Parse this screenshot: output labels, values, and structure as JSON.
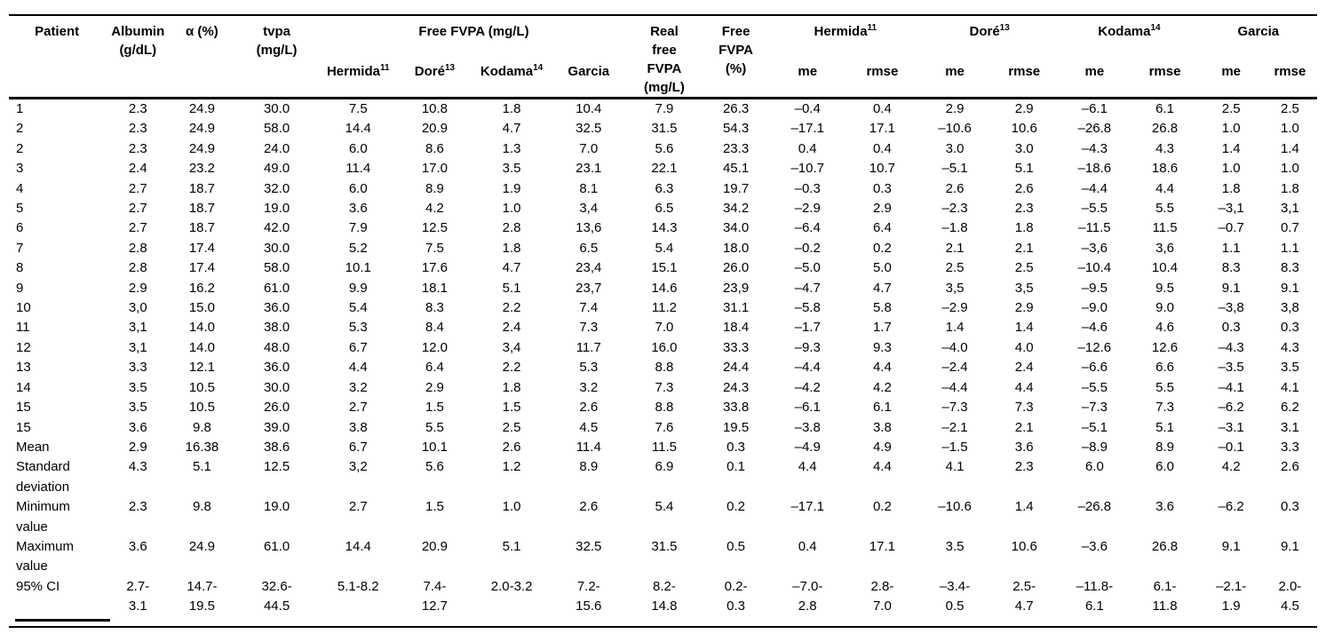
{
  "table": {
    "header": {
      "patient": "Patient",
      "albumin": "Albumin\n(g/dL)",
      "alpha": "α (%)",
      "tvpa": "tvpa\n(mg/L)",
      "free_fvpa_group": "Free FVPA (mg/L)",
      "real_free": "Real\nfree\nFVPA\n(mg/L)",
      "free_pct": "Free\nFVPA\n(%)",
      "hermida": {
        "label": "Hermida",
        "sup": "11"
      },
      "dore": {
        "label": "Doré",
        "sup": "13"
      },
      "kodama": {
        "label": "Kodama",
        "sup": "14"
      },
      "garcia": {
        "label": "Garcia",
        "sup": ""
      },
      "me": "me",
      "rmse": "rmse"
    },
    "rows": [
      {
        "cells": [
          "1",
          "2.3",
          "24.9",
          "30.0",
          "7.5",
          "10.8",
          "1.8",
          "10.4",
          "7.9",
          "26.3",
          "–0.4",
          "0.4",
          "2.9",
          "2.9",
          "–6.1",
          "6.1",
          "2.5",
          "2.5"
        ]
      },
      {
        "cells": [
          "2",
          "2.3",
          "24.9",
          "58.0",
          "14.4",
          "20.9",
          "4.7",
          "32.5",
          "31.5",
          "54.3",
          "–17.1",
          "17.1",
          "–10.6",
          "10.6",
          "–26.8",
          "26.8",
          "1.0",
          "1.0"
        ]
      },
      {
        "cells": [
          "2",
          "2.3",
          "24.9",
          "24.0",
          "6.0",
          "8.6",
          "1.3",
          "7.0",
          "5.6",
          "23.3",
          "0.4",
          "0.4",
          "3.0",
          "3.0",
          "–4.3",
          "4.3",
          "1.4",
          "1.4"
        ]
      },
      {
        "cells": [
          "3",
          "2.4",
          "23.2",
          "49.0",
          "11.4",
          "17.0",
          "3.5",
          "23.1",
          "22.1",
          "45.1",
          "–10.7",
          "10.7",
          "–5.1",
          "5.1",
          "–18.6",
          "18.6",
          "1.0",
          "1.0"
        ]
      },
      {
        "cells": [
          "4",
          "2.7",
          "18.7",
          "32.0",
          "6.0",
          "8.9",
          "1.9",
          "8.1",
          "6.3",
          "19.7",
          "–0.3",
          "0.3",
          "2.6",
          "2.6",
          "–4.4",
          "4.4",
          "1.8",
          "1.8"
        ]
      },
      {
        "cells": [
          "5",
          "2.7",
          "18.7",
          "19.0",
          "3.6",
          "4.2",
          "1.0",
          "3,4",
          "6.5",
          "34.2",
          "–2.9",
          "2.9",
          "–2.3",
          "2.3",
          "–5.5",
          "5.5",
          "–3,1",
          "3,1"
        ]
      },
      {
        "cells": [
          "6",
          "2.7",
          "18.7",
          "42.0",
          "7.9",
          "12.5",
          "2.8",
          "13,6",
          "14.3",
          "34.0",
          "–6.4",
          "6.4",
          "–1.8",
          "1.8",
          "–11.5",
          "11.5",
          "–0.7",
          "0.7"
        ]
      },
      {
        "cells": [
          "7",
          "2.8",
          "17.4",
          "30.0",
          "5.2",
          "7.5",
          "1.8",
          "6.5",
          "5.4",
          "18.0",
          "–0.2",
          "0.2",
          "2.1",
          "2.1",
          "–3,6",
          "3,6",
          "1.1",
          "1.1"
        ]
      },
      {
        "cells": [
          "8",
          "2.8",
          "17.4",
          "58.0",
          "10.1",
          "17.6",
          "4.7",
          "23,4",
          "15.1",
          "26.0",
          "–5.0",
          "5.0",
          "2.5",
          "2.5",
          "–10.4",
          "10.4",
          "8.3",
          "8.3"
        ]
      },
      {
        "cells": [
          "9",
          "2.9",
          "16.2",
          "61.0",
          "9.9",
          "18.1",
          "5.1",
          "23,7",
          "14.6",
          "23,9",
          "–4.7",
          "4.7",
          "3,5",
          "3,5",
          "–9.5",
          "9.5",
          "9.1",
          "9.1"
        ]
      },
      {
        "cells": [
          "10",
          "3,0",
          "15.0",
          "36.0",
          "5.4",
          "8.3",
          "2.2",
          "7.4",
          "11.2",
          "31.1",
          "–5.8",
          "5.8",
          "–2.9",
          "2.9",
          "–9.0",
          "9.0",
          "–3,8",
          "3,8"
        ]
      },
      {
        "cells": [
          "11",
          "3,1",
          "14.0",
          "38.0",
          "5.3",
          "8.4",
          "2.4",
          "7.3",
          "7.0",
          "18.4",
          "–1.7",
          "1.7",
          "1.4",
          "1.4",
          "–4.6",
          "4.6",
          "0.3",
          "0.3"
        ]
      },
      {
        "cells": [
          "12",
          "3,1",
          "14.0",
          "48.0",
          "6.7",
          "12.0",
          "3,4",
          "11.7",
          "16.0",
          "33.3",
          "–9.3",
          "9.3",
          "–4.0",
          "4.0",
          "–12.6",
          "12.6",
          "–4.3",
          "4.3"
        ]
      },
      {
        "cells": [
          "13",
          "3.3",
          "12.1",
          "36.0",
          "4.4",
          "6.4",
          "2.2",
          "5.3",
          "8.8",
          "24.4",
          "–4.4",
          "4.4",
          "–2.4",
          "2.4",
          "–6.6",
          "6.6",
          "–3.5",
          "3.5"
        ]
      },
      {
        "cells": [
          "14",
          "3.5",
          "10.5",
          "30.0",
          "3.2",
          "2.9",
          "1.8",
          "3.2",
          "7.3",
          "24.3",
          "–4.2",
          "4.2",
          "–4.4",
          "4.4",
          "–5.5",
          "5.5",
          "–4.1",
          "4.1"
        ]
      },
      {
        "cells": [
          "15",
          "3.5",
          "10.5",
          "26.0",
          "2.7",
          "1.5",
          "1.5",
          "2.6",
          "8.8",
          "33.8",
          "–6.1",
          "6.1",
          "–7.3",
          "7.3",
          "–7.3",
          "7.3",
          "–6.2",
          "6.2"
        ]
      },
      {
        "cells": [
          "15",
          "3.6",
          "9.8",
          "39.0",
          "3.8",
          "5.5",
          "2.5",
          "4.5",
          "7.6",
          "19.5",
          "–3.8",
          "3.8",
          "–2.1",
          "2.1",
          "–5.1",
          "5.1",
          "–3.1",
          "3.1"
        ]
      },
      {
        "cells": [
          "Mean",
          "2.9",
          "16.38",
          "38.6",
          "6.7",
          "10.1",
          "2.6",
          "11.4",
          "11.5",
          "0.3",
          "–4.9",
          "4.9",
          "–1.5",
          "3.6",
          "–8.9",
          "8.9",
          "–0.1",
          "3.3"
        ]
      },
      {
        "cells": [
          "Standard\ndeviation",
          "4.3",
          "5.1",
          "12.5",
          "3,2",
          "5.6",
          "1.2",
          "8.9",
          "6.9",
          "0.1",
          "4.4",
          "4.4",
          "4.1",
          "2.3",
          "6.0",
          "6.0",
          "4.2",
          "2.6"
        ]
      },
      {
        "cells": [
          "Minimum\nvalue",
          "2.3",
          "9.8",
          "19.0",
          "2.7",
          "1.5",
          "1.0",
          "2.6",
          "5.4",
          "0.2",
          "–17.1",
          "0.2",
          "–10.6",
          "1.4",
          "–26.8",
          "3.6",
          "–6.2",
          "0.3"
        ]
      },
      {
        "cells": [
          "Maximum\nvalue",
          "3.6",
          "24.9",
          "61.0",
          "14.4",
          "20.9",
          "5.1",
          "32.5",
          "31.5",
          "0.5",
          "0.4",
          "17.1",
          "3.5",
          "10.6",
          "–3.6",
          "26.8",
          "9.1",
          "9.1"
        ]
      },
      {
        "cells": [
          "95% CI",
          "2.7-\n3.1",
          "14.7-\n19.5",
          "32.6-\n44.5",
          "5.1-8.2",
          "7.4-\n12.7",
          "2.0-3.2",
          "7.2-\n15.6",
          "8.2-\n14.8",
          "0.2-\n0.3",
          "–7.0-\n2.8",
          "2.8-\n7.0",
          "–3.4-\n0.5",
          "2.5-\n4.7",
          "–11.8-\n6.1",
          "6.1-\n11.8",
          "–2.1-\n1.9",
          "2.0-\n4.5"
        ]
      }
    ]
  }
}
